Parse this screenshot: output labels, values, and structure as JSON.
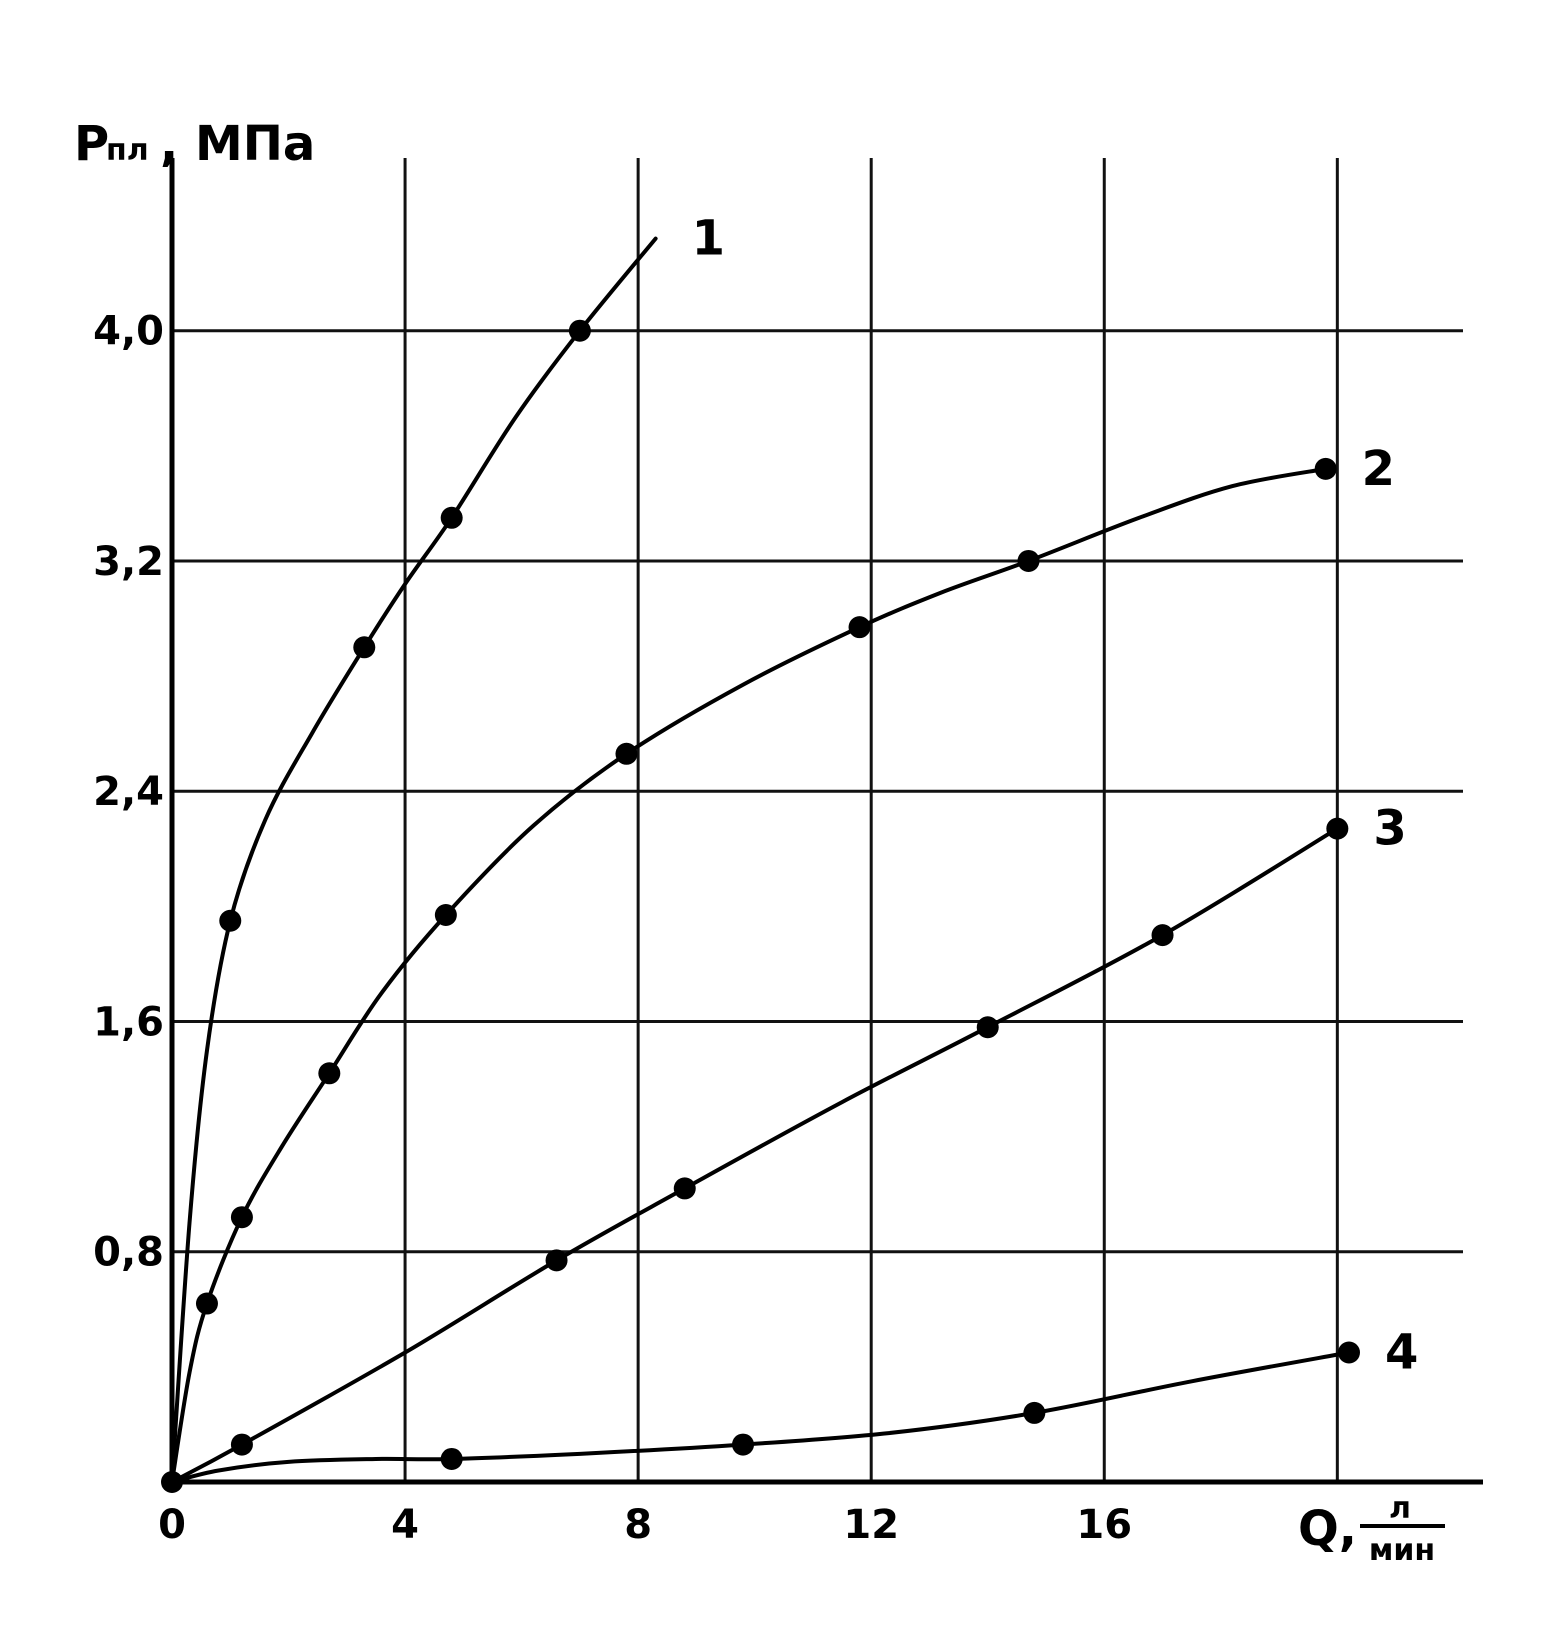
{
  "chart_data": {
    "type": "line",
    "title": "",
    "ylabel": {
      "main": "P",
      "sub": "пл",
      "unit": ", МПа"
    },
    "xlabel": {
      "main": "Q,",
      "num": "л",
      "den": "мин"
    },
    "xlim": [
      0,
      22.5
    ],
    "ylim": [
      0,
      4.6
    ],
    "xticks": [
      0,
      4,
      8,
      12,
      16
    ],
    "xtick_labels": [
      "0",
      "4",
      "8",
      "12",
      "16"
    ],
    "yticks": [
      0.8,
      1.6,
      2.4,
      3.2,
      4.0
    ],
    "ytick_labels": [
      "0,8",
      "1,6",
      "2,4",
      "3,2",
      "4,0"
    ],
    "xgrid": [
      4,
      8,
      12,
      16,
      20
    ],
    "ygrid": [
      0.8,
      1.6,
      2.4,
      3.2,
      4.0
    ],
    "series": [
      {
        "name": "1",
        "points": [
          [
            0,
            0
          ],
          [
            1,
            1.95
          ],
          [
            3.3,
            2.9
          ],
          [
            4.8,
            3.35
          ],
          [
            7,
            4.0
          ]
        ],
        "curve": [
          [
            0,
            0
          ],
          [
            0.3,
            0.9
          ],
          [
            0.6,
            1.5
          ],
          [
            1,
            1.95
          ],
          [
            1.6,
            2.3
          ],
          [
            2.4,
            2.6
          ],
          [
            3.3,
            2.9
          ],
          [
            4,
            3.12
          ],
          [
            4.8,
            3.35
          ],
          [
            5.9,
            3.7
          ],
          [
            7,
            4.0
          ],
          [
            8.3,
            4.32
          ]
        ]
      },
      {
        "name": "2",
        "points": [
          [
            0.6,
            0.62
          ],
          [
            1.2,
            0.92
          ],
          [
            2.7,
            1.42
          ],
          [
            4.7,
            1.97
          ],
          [
            7.8,
            2.53
          ],
          [
            11.8,
            2.97
          ],
          [
            14.7,
            3.2
          ],
          [
            19.8,
            3.52
          ]
        ],
        "curve": [
          [
            0,
            0
          ],
          [
            0.3,
            0.38
          ],
          [
            0.6,
            0.62
          ],
          [
            1.2,
            0.92
          ],
          [
            1.9,
            1.17
          ],
          [
            2.7,
            1.42
          ],
          [
            3.6,
            1.7
          ],
          [
            4.7,
            1.97
          ],
          [
            6.2,
            2.28
          ],
          [
            7.8,
            2.53
          ],
          [
            9.8,
            2.77
          ],
          [
            11.8,
            2.97
          ],
          [
            13.2,
            3.09
          ],
          [
            14.7,
            3.2
          ],
          [
            16.6,
            3.35
          ],
          [
            18.2,
            3.46
          ],
          [
            19.8,
            3.52
          ]
        ]
      },
      {
        "name": "3",
        "points": [
          [
            1.2,
            0.13
          ],
          [
            6.6,
            0.77
          ],
          [
            8.8,
            1.02
          ],
          [
            14,
            1.58
          ],
          [
            17,
            1.9
          ],
          [
            20,
            2.27
          ]
        ],
        "curve": [
          [
            0,
            0
          ],
          [
            1.2,
            0.13
          ],
          [
            4,
            0.45
          ],
          [
            6.6,
            0.77
          ],
          [
            8.8,
            1.02
          ],
          [
            11.5,
            1.32
          ],
          [
            14,
            1.58
          ],
          [
            17,
            1.9
          ],
          [
            20,
            2.27
          ]
        ]
      },
      {
        "name": "4",
        "points": [
          [
            4.8,
            0.08
          ],
          [
            9.8,
            0.13
          ],
          [
            14.8,
            0.24
          ],
          [
            20.2,
            0.45
          ]
        ],
        "curve": [
          [
            0,
            0
          ],
          [
            0.8,
            0.04
          ],
          [
            2,
            0.07
          ],
          [
            3.5,
            0.08
          ],
          [
            4.8,
            0.08
          ],
          [
            7.2,
            0.1
          ],
          [
            9.8,
            0.13
          ],
          [
            12.3,
            0.17
          ],
          [
            14.8,
            0.24
          ],
          [
            17.5,
            0.35
          ],
          [
            20.2,
            0.45
          ]
        ]
      }
    ],
    "grid": true,
    "legend": "none"
  }
}
